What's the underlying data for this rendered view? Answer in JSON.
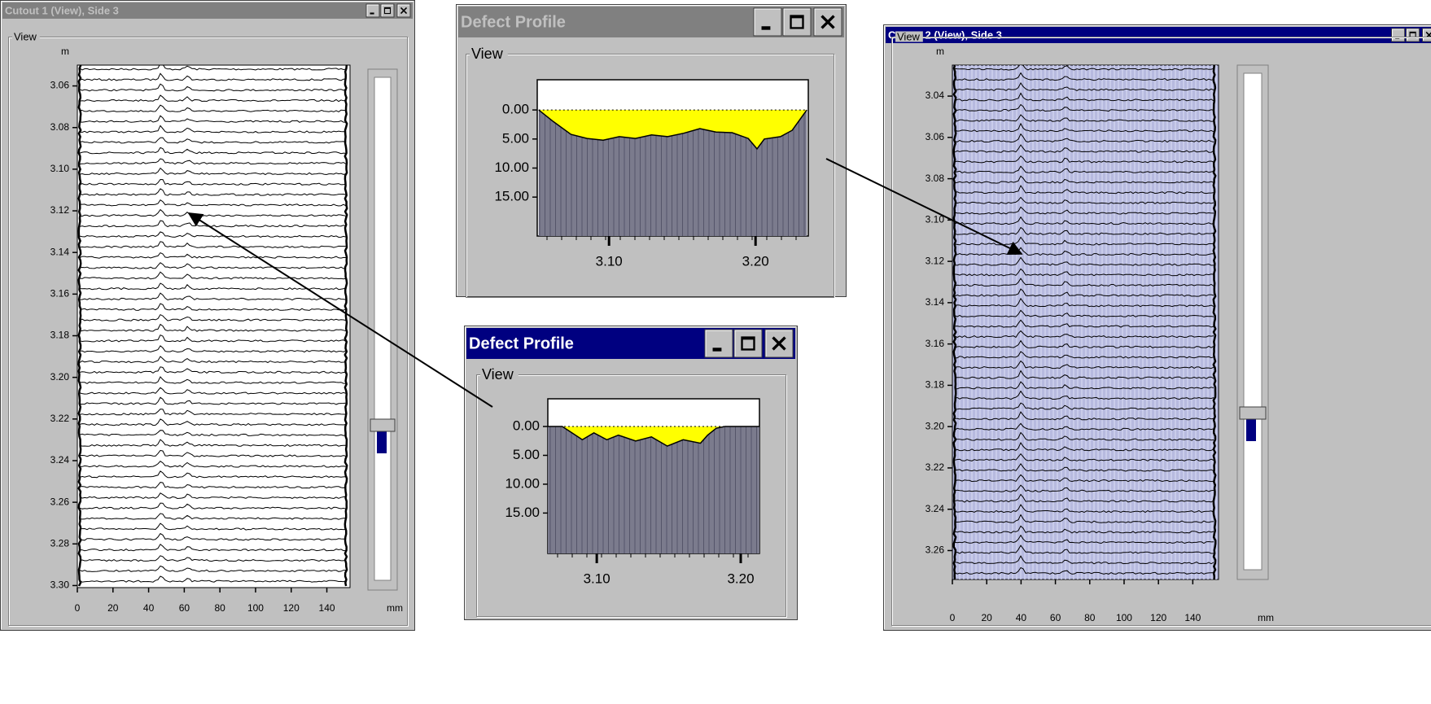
{
  "windows": [
    {
      "title": "Cutout 1 (View), Side 3",
      "group": "View",
      "y_unit": "m",
      "x_unit": "mm",
      "ylim": [
        3.05,
        3.301
      ],
      "yticks": [
        3.06,
        3.08,
        {
          "value": 3.1,
          "label": "3.10"
        },
        3.12,
        3.14,
        3.16,
        3.18,
        {
          "value": 3.2,
          "label": "3.20"
        },
        3.22,
        3.24,
        3.26,
        3.28,
        {
          "value": 3.3,
          "label": "3.30"
        }
      ],
      "xlim": [
        0,
        153
      ],
      "xticks": [
        0,
        20,
        40,
        60,
        80,
        100,
        120,
        140
      ]
    },
    {
      "title": "Defect Profile",
      "group": "View",
      "ylim": [
        -5.2,
        21.7
      ],
      "yticks": [
        {
          "value": 0,
          "label": "0.00"
        },
        {
          "value": 5,
          "label": "5.00"
        },
        {
          "value": 10,
          "label": "10.00"
        },
        {
          "value": 15,
          "label": "15.00"
        }
      ],
      "xlim": [
        3.051,
        3.236
      ],
      "xticks": [
        {
          "value": 3.1,
          "label": "3.10"
        },
        {
          "value": 3.2,
          "label": "3.20"
        }
      ],
      "x": [
        3.052,
        3.062,
        3.074,
        3.085,
        3.096,
        3.107,
        3.118,
        3.129,
        3.14,
        3.151,
        3.162,
        3.173,
        3.184,
        3.195,
        3.201,
        3.206,
        3.217,
        3.225,
        3.231,
        3.235
      ],
      "values": [
        0,
        2.0,
        4.2,
        4.9,
        5.2,
        4.6,
        4.9,
        4.3,
        4.6,
        4.0,
        3.2,
        3.8,
        3.9,
        4.9,
        6.7,
        5.0,
        4.6,
        3.5,
        1.4,
        0
      ]
    },
    {
      "title": "Defect Profile",
      "group": "View",
      "ylim": [
        -4.8,
        22
      ],
      "yticks": [
        {
          "value": 0,
          "label": "0.00"
        },
        {
          "value": 5,
          "label": "5.00"
        },
        {
          "value": 10,
          "label": "10.00"
        },
        {
          "value": 15,
          "label": "15.00"
        }
      ],
      "xlim": [
        3.066,
        3.213
      ],
      "xticks": [
        {
          "value": 3.1,
          "label": "3.10"
        },
        {
          "value": 3.2,
          "label": "3.20"
        }
      ],
      "x": [
        3.066,
        3.076,
        3.081,
        3.09,
        3.098,
        3.107,
        3.115,
        3.127,
        3.138,
        3.149,
        3.16,
        3.172,
        3.177,
        3.183,
        3.189,
        3.213
      ],
      "values": [
        0,
        0,
        0.8,
        2.3,
        1.1,
        2.3,
        1.5,
        2.5,
        1.8,
        3.4,
        2.3,
        2.9,
        1.5,
        0.3,
        0,
        0
      ]
    },
    {
      "title": "Cutout 2 (View), Side 3",
      "group": "View",
      "y_unit": "m",
      "x_unit": "mm",
      "ylim": [
        3.025,
        3.274
      ],
      "yticks": [
        3.04,
        3.06,
        3.08,
        {
          "value": 3.1,
          "label": "3.10"
        },
        3.12,
        3.14,
        3.16,
        3.18,
        {
          "value": 3.2,
          "label": "3.20"
        },
        3.22,
        3.24,
        3.26
      ],
      "xlim": [
        0,
        155
      ],
      "xticks": [
        0,
        20,
        40,
        60,
        80,
        100,
        120,
        140
      ]
    }
  ]
}
